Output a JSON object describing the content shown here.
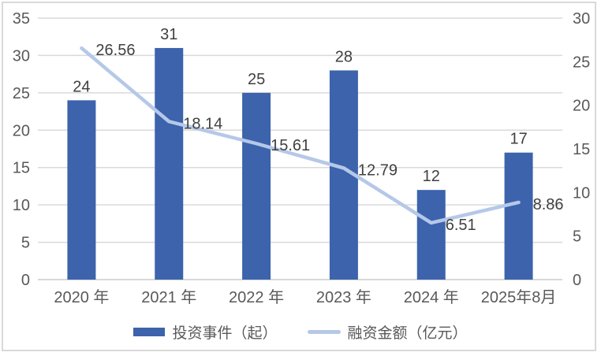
{
  "chart_data": {
    "type": "bar",
    "subtype": "combo-bar-line",
    "title": "",
    "categories": [
      "2020 年",
      "2021 年",
      "2022 年",
      "2023 年",
      "2024 年",
      "2025年8月"
    ],
    "series": [
      {
        "name": "投资事件（起）",
        "type": "bar",
        "axis": "left",
        "values": [
          24,
          31,
          25,
          28,
          12,
          17
        ],
        "labels": [
          "24",
          "31",
          "25",
          "28",
          "12",
          "17"
        ],
        "color": "#3c63ac"
      },
      {
        "name": "融资金额（亿元）",
        "type": "line",
        "axis": "right",
        "values": [
          26.56,
          18.14,
          15.61,
          12.79,
          6.51,
          8.86
        ],
        "labels": [
          "26.56",
          "18.14",
          "15.61",
          "12.79",
          "6.51",
          "8.86"
        ],
        "color": "#b6c8e8"
      }
    ],
    "left_axis": {
      "min": 0,
      "max": 35,
      "step": 5,
      "ticks": [
        "0",
        "5",
        "10",
        "15",
        "20",
        "25",
        "30",
        "35"
      ]
    },
    "right_axis": {
      "min": 0,
      "max": 30,
      "step": 5,
      "ticks": [
        "0",
        "5",
        "10",
        "15",
        "20",
        "25",
        "30"
      ]
    },
    "grid": true,
    "legend_position": "bottom",
    "colors": {
      "bar": "#3c63ac",
      "line": "#b6c8e8",
      "grid": "#d9d9d9",
      "zero_line": "#cccccc",
      "axis_text": "#595959",
      "data_label": "#404040",
      "background": "#ffffff",
      "border": "#d9d9d9"
    }
  }
}
